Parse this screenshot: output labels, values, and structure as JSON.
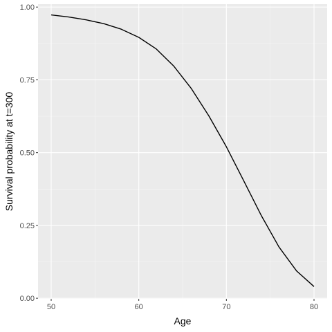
{
  "chart_data": {
    "type": "line",
    "title": "",
    "xlabel": "Age",
    "ylabel": "Survival probability at t=300",
    "xlim": [
      48.5,
      81.5
    ],
    "ylim": [
      -0.002,
      1.01
    ],
    "x_ticks": [
      50,
      60,
      70,
      80
    ],
    "x_tick_labels": [
      "50",
      "60",
      "70",
      "80"
    ],
    "y_ticks": [
      0,
      0.25,
      0.5,
      0.75,
      1
    ],
    "y_tick_labels": [
      "0.00",
      "0.25",
      "0.50",
      "0.75",
      "1.00"
    ],
    "grid": true,
    "legend": "none",
    "series": [
      {
        "color": "#000000",
        "x": [
          50,
          52,
          54,
          56,
          58,
          60,
          62,
          64,
          66,
          68,
          70,
          72,
          74,
          76,
          78,
          80
        ],
        "y": [
          0.973,
          0.966,
          0.956,
          0.943,
          0.924,
          0.896,
          0.856,
          0.797,
          0.72,
          0.626,
          0.52,
          0.402,
          0.283,
          0.176,
          0.094,
          0.04
        ]
      }
    ]
  },
  "colors": {
    "panel": "#ebebeb",
    "grid_major": "#ffffff",
    "grid_minor": "#f5f5f5",
    "tick": "#333333"
  }
}
